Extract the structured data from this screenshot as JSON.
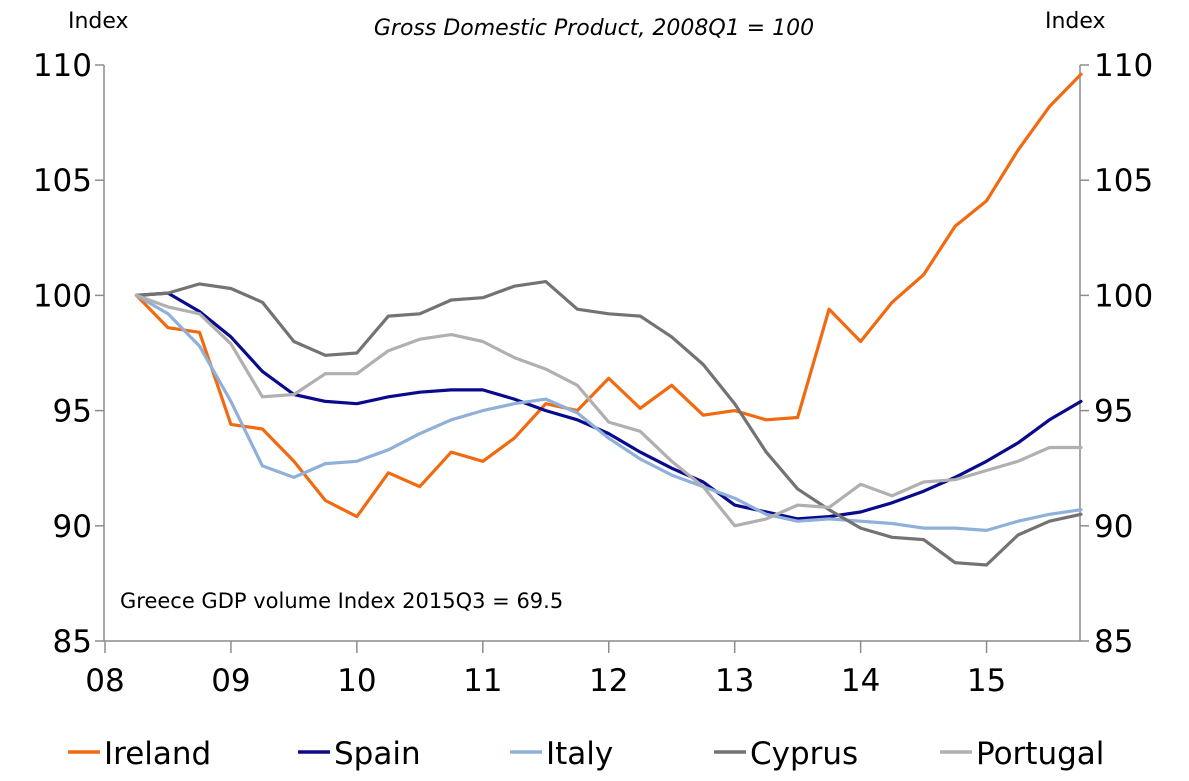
{
  "chart_data": {
    "type": "line",
    "title": "Gross Domestic Product, 2008Q1 = 100",
    "ylabel_left": "Index",
    "ylabel_right": "Index",
    "annotation": "Greece GDP volume Index 2015Q3 = 69.5",
    "ylim": [
      85,
      110
    ],
    "yticks": [
      85,
      90,
      95,
      100,
      105,
      110
    ],
    "xticks": [
      "08",
      "09",
      "10",
      "11",
      "12",
      "13",
      "14",
      "15"
    ],
    "x_start": "2008Q1",
    "x": [
      "2008Q1",
      "2008Q2",
      "2008Q3",
      "2008Q4",
      "2009Q1",
      "2009Q2",
      "2009Q3",
      "2009Q4",
      "2010Q1",
      "2010Q2",
      "2010Q3",
      "2010Q4",
      "2011Q1",
      "2011Q2",
      "2011Q3",
      "2011Q4",
      "2012Q1",
      "2012Q2",
      "2012Q3",
      "2012Q4",
      "2013Q1",
      "2013Q2",
      "2013Q3",
      "2013Q4",
      "2014Q1",
      "2014Q2",
      "2014Q3",
      "2014Q4",
      "2015Q1",
      "2015Q2",
      "2015Q3"
    ],
    "legend_position": "bottom",
    "grid": false,
    "series": [
      {
        "name": "Ireland",
        "color": "#f26a10",
        "values": [
          100.0,
          98.6,
          98.4,
          94.4,
          94.2,
          92.8,
          91.1,
          90.4,
          92.3,
          91.7,
          93.2,
          92.8,
          93.8,
          95.3,
          95.0,
          96.4,
          95.1,
          96.1,
          94.8,
          95.0,
          94.6,
          94.7,
          99.4,
          98.0,
          99.7,
          100.9,
          103.0,
          104.1,
          106.3,
          108.2,
          109.6
        ]
      },
      {
        "name": "Spain",
        "color": "#0a0a8c",
        "values": [
          100.0,
          100.1,
          99.3,
          98.2,
          96.7,
          95.7,
          95.4,
          95.3,
          95.6,
          95.8,
          95.9,
          95.9,
          95.5,
          95.0,
          94.6,
          94.0,
          93.2,
          92.5,
          91.9,
          90.9,
          90.6,
          90.3,
          90.4,
          90.6,
          91.0,
          91.5,
          92.1,
          92.8,
          93.6,
          94.6,
          95.4
        ]
      },
      {
        "name": "Italy",
        "color": "#8fb0d8",
        "values": [
          100.0,
          99.2,
          97.8,
          95.4,
          92.6,
          92.1,
          92.7,
          92.8,
          93.3,
          94.0,
          94.6,
          95.0,
          95.3,
          95.5,
          94.9,
          93.8,
          92.9,
          92.2,
          91.7,
          91.2,
          90.5,
          90.2,
          90.3,
          90.2,
          90.1,
          89.9,
          89.9,
          89.8,
          90.2,
          90.5,
          90.7
        ]
      },
      {
        "name": "Cyprus",
        "color": "#737373",
        "values": [
          100.0,
          100.1,
          100.5,
          100.3,
          99.7,
          98.0,
          97.4,
          97.5,
          99.1,
          99.2,
          99.8,
          99.9,
          100.4,
          100.6,
          99.4,
          99.2,
          99.1,
          98.2,
          97.0,
          95.3,
          93.2,
          91.6,
          90.7,
          89.9,
          89.5,
          89.4,
          88.4,
          88.3,
          89.6,
          90.2,
          90.5
        ]
      },
      {
        "name": "Portugal",
        "color": "#b0b0b0",
        "values": [
          100.0,
          99.5,
          99.2,
          97.9,
          95.6,
          95.7,
          96.6,
          96.6,
          97.6,
          98.1,
          98.3,
          98.0,
          97.3,
          96.8,
          96.1,
          94.5,
          94.1,
          92.8,
          91.7,
          90.0,
          90.3,
          90.9,
          90.8,
          91.8,
          91.3,
          91.9,
          92.0,
          92.4,
          92.8,
          93.4,
          93.4
        ]
      }
    ]
  }
}
